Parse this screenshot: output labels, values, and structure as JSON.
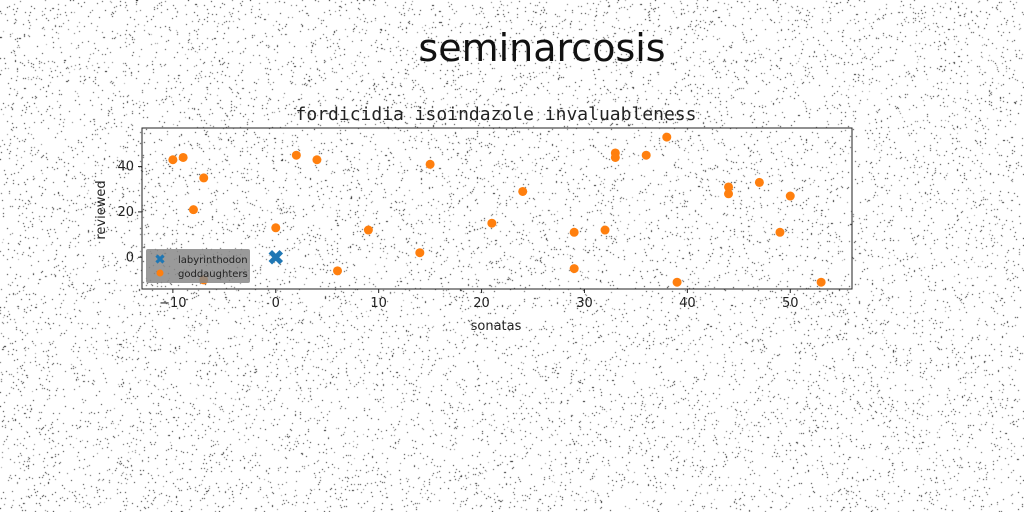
{
  "suptitle": "seminarcosis",
  "chart_data": {
    "type": "scatter",
    "title": "fordicidia isoindazole invaluableness",
    "xlabel": "sonatas",
    "ylabel": "reviewed",
    "xlim": [
      -13,
      56
    ],
    "ylim": [
      -14,
      57
    ],
    "xticks": [
      -10,
      0,
      10,
      20,
      30,
      40,
      50
    ],
    "yticks": [
      0,
      20,
      40
    ],
    "legend_position": "lower-left",
    "series": [
      {
        "name": "labyrinthodon",
        "marker": "X",
        "color": "#1f77b4",
        "points": [
          [
            0,
            0
          ]
        ]
      },
      {
        "name": "goddaughters",
        "marker": "o",
        "color": "#ff7f0e",
        "points": [
          [
            -10,
            43
          ],
          [
            -9,
            44
          ],
          [
            -7,
            35
          ],
          [
            -8,
            21
          ],
          [
            -7,
            -10
          ],
          [
            0,
            13
          ],
          [
            2,
            45
          ],
          [
            4,
            43
          ],
          [
            6,
            -6
          ],
          [
            9,
            12
          ],
          [
            14,
            2
          ],
          [
            15,
            41
          ],
          [
            21,
            15
          ],
          [
            24,
            29
          ],
          [
            29,
            11
          ],
          [
            29,
            -5
          ],
          [
            32,
            12
          ],
          [
            33,
            46
          ],
          [
            33,
            44
          ],
          [
            36,
            45
          ],
          [
            38,
            53
          ],
          [
            39,
            -11
          ],
          [
            44,
            31
          ],
          [
            44,
            28
          ],
          [
            47,
            33
          ],
          [
            49,
            11
          ],
          [
            50,
            27
          ],
          [
            53,
            -11
          ]
        ]
      }
    ]
  }
}
